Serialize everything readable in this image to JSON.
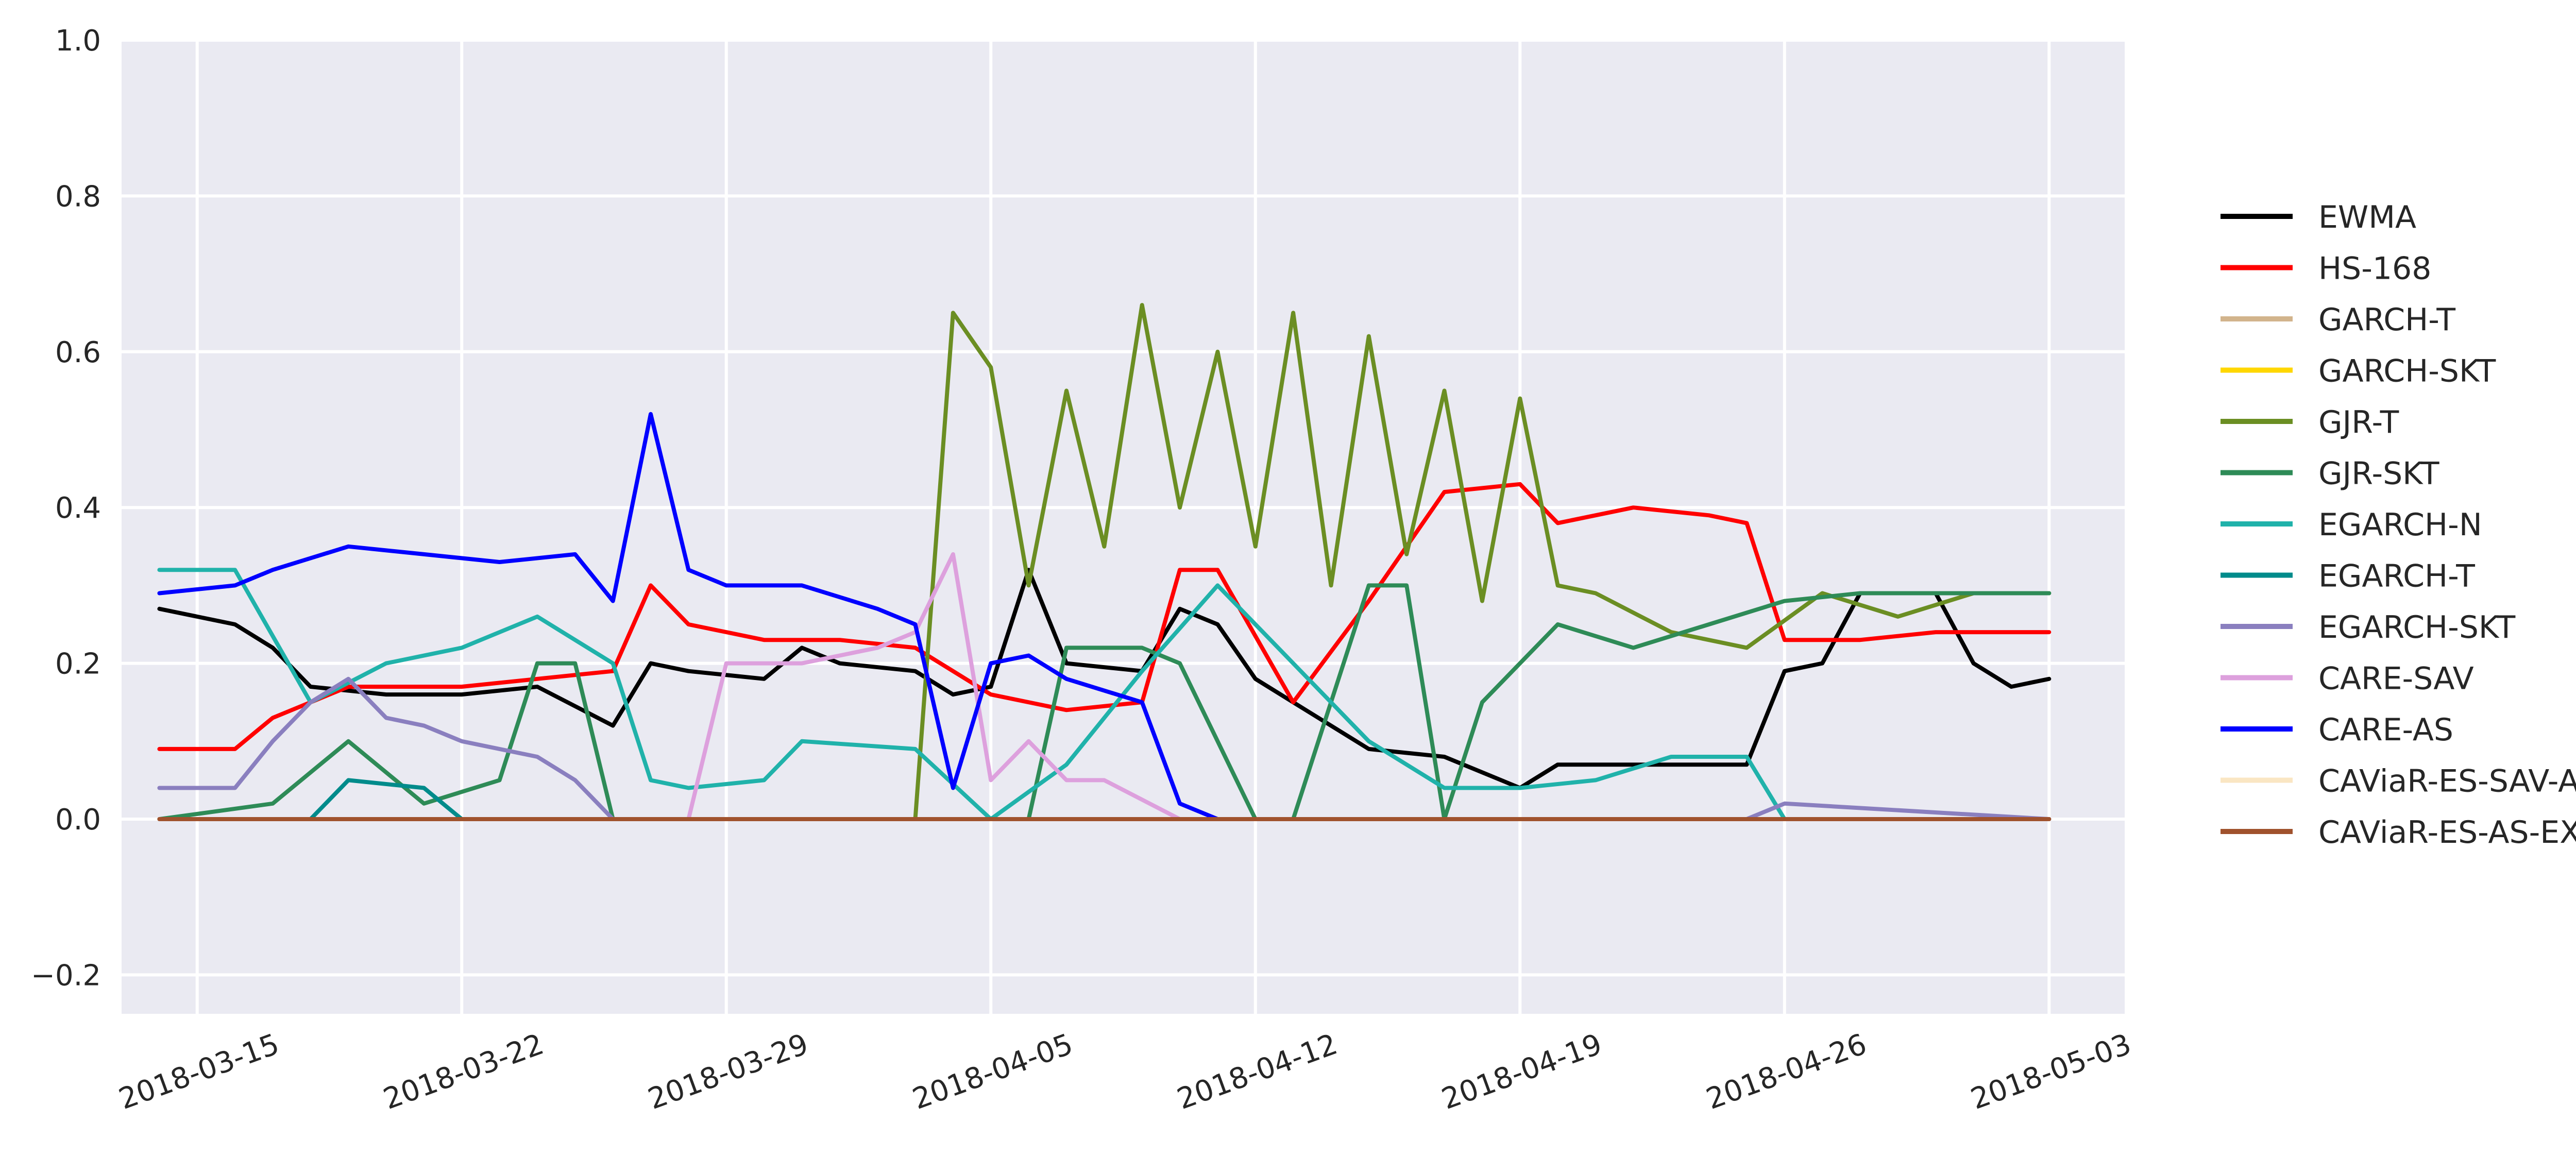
{
  "chart_data": {
    "type": "line",
    "title": "",
    "xlabel": "",
    "ylabel": "",
    "x_type": "date",
    "xlim": [
      "2018-03-13",
      "2018-05-05"
    ],
    "ylim": [
      -0.25,
      1.0
    ],
    "y_ticks": [
      "−0.2",
      "0.0",
      "0.2",
      "0.4",
      "0.6",
      "0.8",
      "1.0"
    ],
    "y_tick_values": [
      -0.2,
      0.0,
      0.2,
      0.4,
      0.6,
      0.8,
      1.0
    ],
    "x_ticks": [
      "2018-03-15",
      "2018-03-22",
      "2018-03-29",
      "2018-04-05",
      "2018-04-12",
      "2018-04-19",
      "2018-04-26",
      "2018-05-03"
    ],
    "grid": true,
    "legend_position": "right",
    "background": "#EAEAF2",
    "series": [
      {
        "name": "EWMA",
        "color": "#000000",
        "x": [
          "2018-03-14",
          "2018-03-16",
          "2018-03-17",
          "2018-03-18",
          "2018-03-20",
          "2018-03-22",
          "2018-03-24",
          "2018-03-26",
          "2018-03-27",
          "2018-03-28",
          "2018-03-30",
          "2018-03-31",
          "2018-04-01",
          "2018-04-03",
          "2018-04-04",
          "2018-04-05",
          "2018-04-06",
          "2018-04-07",
          "2018-04-09",
          "2018-04-10",
          "2018-04-11",
          "2018-04-12",
          "2018-04-13",
          "2018-04-15",
          "2018-04-17",
          "2018-04-19",
          "2018-04-20",
          "2018-04-22",
          "2018-04-24",
          "2018-04-25",
          "2018-04-26",
          "2018-04-27",
          "2018-04-28",
          "2018-04-30",
          "2018-05-01",
          "2018-05-02",
          "2018-05-03"
        ],
        "y": [
          0.27,
          0.25,
          0.22,
          0.17,
          0.16,
          0.16,
          0.17,
          0.12,
          0.2,
          0.19,
          0.18,
          0.22,
          0.2,
          0.19,
          0.16,
          0.17,
          0.32,
          0.2,
          0.19,
          0.27,
          0.25,
          0.18,
          0.15,
          0.09,
          0.08,
          0.04,
          0.07,
          0.07,
          0.07,
          0.07,
          0.19,
          0.2,
          0.29,
          0.29,
          0.2,
          0.17,
          0.18
        ]
      },
      {
        "name": "HS-168",
        "color": "#FF0000",
        "x": [
          "2018-03-14",
          "2018-03-16",
          "2018-03-17",
          "2018-03-19",
          "2018-03-22",
          "2018-03-24",
          "2018-03-26",
          "2018-03-27",
          "2018-03-28",
          "2018-03-30",
          "2018-04-01",
          "2018-04-03",
          "2018-04-05",
          "2018-04-07",
          "2018-04-09",
          "2018-04-10",
          "2018-04-11",
          "2018-04-13",
          "2018-04-15",
          "2018-04-17",
          "2018-04-19",
          "2018-04-20",
          "2018-04-22",
          "2018-04-24",
          "2018-04-25",
          "2018-04-26",
          "2018-04-28",
          "2018-04-30",
          "2018-05-01",
          "2018-05-03"
        ],
        "y": [
          0.09,
          0.09,
          0.13,
          0.17,
          0.17,
          0.18,
          0.19,
          0.3,
          0.25,
          0.23,
          0.23,
          0.22,
          0.16,
          0.14,
          0.15,
          0.32,
          0.32,
          0.15,
          0.28,
          0.42,
          0.43,
          0.38,
          0.4,
          0.39,
          0.38,
          0.23,
          0.23,
          0.24,
          0.24,
          0.24
        ]
      },
      {
        "name": "GARCH-T",
        "color": "#D2B48C",
        "x": [
          "2018-03-14",
          "2018-05-03"
        ],
        "y": [
          0.0,
          0.0
        ]
      },
      {
        "name": "GARCH-SKT",
        "color": "#FFD700",
        "x": [
          "2018-03-14",
          "2018-05-03"
        ],
        "y": [
          0.0,
          0.0
        ]
      },
      {
        "name": "GJR-T",
        "color": "#6B8E23",
        "x": [
          "2018-03-14",
          "2018-04-03",
          "2018-04-04",
          "2018-04-05",
          "2018-04-06",
          "2018-04-07",
          "2018-04-08",
          "2018-04-09",
          "2018-04-10",
          "2018-04-11",
          "2018-04-12",
          "2018-04-13",
          "2018-04-14",
          "2018-04-15",
          "2018-04-16",
          "2018-04-17",
          "2018-04-18",
          "2018-04-19",
          "2018-04-20",
          "2018-04-21",
          "2018-04-23",
          "2018-04-25",
          "2018-04-27",
          "2018-04-29",
          "2018-05-01",
          "2018-05-03"
        ],
        "y": [
          0.0,
          0.0,
          0.65,
          0.58,
          0.3,
          0.55,
          0.35,
          0.66,
          0.4,
          0.6,
          0.35,
          0.65,
          0.3,
          0.62,
          0.34,
          0.55,
          0.28,
          0.54,
          0.3,
          0.29,
          0.24,
          0.22,
          0.29,
          0.26,
          0.29,
          0.29
        ]
      },
      {
        "name": "GJR-SKT",
        "color": "#2E8B57",
        "x": [
          "2018-03-14",
          "2018-03-17",
          "2018-03-19",
          "2018-03-21",
          "2018-03-23",
          "2018-03-24",
          "2018-03-25",
          "2018-03-26",
          "2018-04-06",
          "2018-04-07",
          "2018-04-09",
          "2018-04-10",
          "2018-04-12",
          "2018-04-13",
          "2018-04-15",
          "2018-04-16",
          "2018-04-17",
          "2018-04-18",
          "2018-04-20",
          "2018-04-22",
          "2018-04-24",
          "2018-04-26",
          "2018-04-28",
          "2018-05-03"
        ],
        "y": [
          0.0,
          0.02,
          0.1,
          0.02,
          0.05,
          0.2,
          0.2,
          0.0,
          0.0,
          0.22,
          0.22,
          0.2,
          0.0,
          0.0,
          0.3,
          0.3,
          0.0,
          0.15,
          0.25,
          0.22,
          0.25,
          0.28,
          0.29,
          0.29
        ]
      },
      {
        "name": "EGARCH-N",
        "color": "#20B2AA",
        "x": [
          "2018-03-14",
          "2018-03-16",
          "2018-03-18",
          "2018-03-20",
          "2018-03-22",
          "2018-03-24",
          "2018-03-26",
          "2018-03-27",
          "2018-03-28",
          "2018-03-30",
          "2018-03-31",
          "2018-04-03",
          "2018-04-05",
          "2018-04-07",
          "2018-04-09",
          "2018-04-11",
          "2018-04-13",
          "2018-04-15",
          "2018-04-17",
          "2018-04-19",
          "2018-04-21",
          "2018-04-23",
          "2018-04-25",
          "2018-04-26",
          "2018-05-03"
        ],
        "y": [
          0.32,
          0.32,
          0.15,
          0.2,
          0.22,
          0.26,
          0.2,
          0.05,
          0.04,
          0.05,
          0.1,
          0.09,
          0.0,
          0.07,
          0.19,
          0.3,
          0.2,
          0.1,
          0.04,
          0.04,
          0.05,
          0.08,
          0.08,
          0.0,
          0.0
        ]
      },
      {
        "name": "EGARCH-T",
        "color": "#008B8B",
        "x": [
          "2018-03-14",
          "2018-03-18",
          "2018-03-19",
          "2018-03-21",
          "2018-03-22",
          "2018-05-03"
        ],
        "y": [
          0.0,
          0.0,
          0.05,
          0.04,
          0.0,
          0.0
        ]
      },
      {
        "name": "EGARCH-SKT",
        "color": "#8A7FBF",
        "x": [
          "2018-03-14",
          "2018-03-16",
          "2018-03-17",
          "2018-03-18",
          "2018-03-19",
          "2018-03-20",
          "2018-03-21",
          "2018-03-22",
          "2018-03-24",
          "2018-03-25",
          "2018-03-26",
          "2018-04-25",
          "2018-04-26",
          "2018-05-03"
        ],
        "y": [
          0.04,
          0.04,
          0.1,
          0.15,
          0.18,
          0.13,
          0.12,
          0.1,
          0.08,
          0.05,
          0.0,
          0.0,
          0.02,
          0.0
        ]
      },
      {
        "name": "CARE-SAV",
        "color": "#DDA0DD",
        "x": [
          "2018-03-14",
          "2018-03-28",
          "2018-03-29",
          "2018-03-31",
          "2018-04-02",
          "2018-04-03",
          "2018-04-04",
          "2018-04-05",
          "2018-04-06",
          "2018-04-07",
          "2018-04-08",
          "2018-04-10",
          "2018-05-03"
        ],
        "y": [
          0.0,
          0.0,
          0.2,
          0.2,
          0.22,
          0.24,
          0.34,
          0.05,
          0.1,
          0.05,
          0.05,
          0.0,
          0.0
        ]
      },
      {
        "name": "CARE-AS",
        "color": "#0000FF",
        "x": [
          "2018-03-14",
          "2018-03-16",
          "2018-03-17",
          "2018-03-19",
          "2018-03-21",
          "2018-03-23",
          "2018-03-25",
          "2018-03-26",
          "2018-03-27",
          "2018-03-28",
          "2018-03-29",
          "2018-03-31",
          "2018-04-02",
          "2018-04-03",
          "2018-04-04",
          "2018-04-05",
          "2018-04-06",
          "2018-04-07",
          "2018-04-09",
          "2018-04-10",
          "2018-04-11",
          "2018-05-03"
        ],
        "y": [
          0.29,
          0.3,
          0.32,
          0.35,
          0.34,
          0.33,
          0.34,
          0.28,
          0.52,
          0.32,
          0.3,
          0.3,
          0.27,
          0.25,
          0.04,
          0.2,
          0.21,
          0.18,
          0.15,
          0.02,
          0.0,
          0.0
        ]
      },
      {
        "name": "CAViaR-ES-SAV-AR",
        "color": "#FAE6C3",
        "x": [
          "2018-03-14",
          "2018-05-03"
        ],
        "y": [
          0.0,
          0.0
        ]
      },
      {
        "name": "CAViaR-ES-AS-EXP",
        "color": "#A0522D",
        "x": [
          "2018-03-14",
          "2018-05-03"
        ],
        "y": [
          0.0,
          0.0
        ]
      }
    ]
  }
}
